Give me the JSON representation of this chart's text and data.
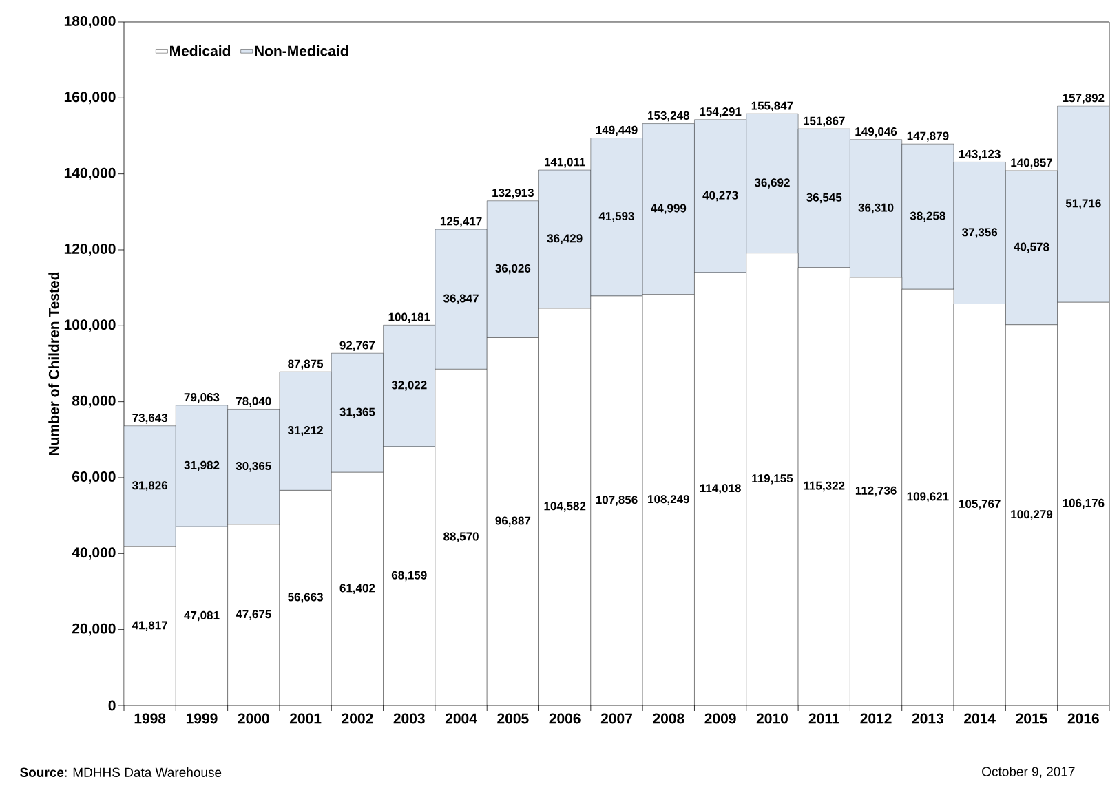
{
  "chart_data": {
    "type": "bar",
    "stacked": true,
    "ylabel": "Number of Children Tested",
    "categories": [
      "1998",
      "1999",
      "2000",
      "2001",
      "2002",
      "2003",
      "2004",
      "2005",
      "2006",
      "2007",
      "2008",
      "2009",
      "2010",
      "2011",
      "2012",
      "2013",
      "2014",
      "2015",
      "2016"
    ],
    "series": [
      {
        "name": "Medicaid",
        "color": "#ffffff",
        "values": [
          41817,
          47081,
          47675,
          56663,
          61402,
          68159,
          88570,
          96887,
          104582,
          107856,
          108249,
          114018,
          119155,
          115322,
          112736,
          109621,
          105767,
          100279,
          106176
        ],
        "value_labels": [
          "41,817",
          "47,081",
          "47,675",
          "56,663",
          "61,402",
          "68,159",
          "88,570",
          "96,887",
          "104,582",
          "107,856",
          "108,249",
          "114,018",
          "119,155",
          "115,322",
          "112,736",
          "109,621",
          "105,767",
          "100,279",
          "106,176"
        ]
      },
      {
        "name": "Non-Medicaid",
        "color": "#dce6f2",
        "values": [
          31826,
          31982,
          30365,
          31212,
          31365,
          32022,
          36847,
          36026,
          36429,
          41593,
          44999,
          40273,
          36692,
          36545,
          36310,
          38258,
          37356,
          40578,
          51716
        ],
        "value_labels": [
          "31,826",
          "31,982",
          "30,365",
          "31,212",
          "31,365",
          "32,022",
          "36,847",
          "36,026",
          "36,429",
          "41,593",
          "44,999",
          "40,273",
          "36,692",
          "36,545",
          "36,310",
          "38,258",
          "37,356",
          "40,578",
          "51,716"
        ]
      }
    ],
    "totals": [
      "73,643",
      "79,063",
      "78,040",
      "87,875",
      "92,767",
      "100,181",
      "125,417",
      "132,913",
      "141,011",
      "149,449",
      "153,248",
      "154,291",
      "155,847",
      "151,867",
      "149,046",
      "147,879",
      "143,123",
      "140,857",
      "157,892"
    ],
    "ylim": [
      0,
      180000
    ],
    "yticks": [
      0,
      {
        "value": 20000,
        "label": "20,000"
      },
      {
        "value": 40000,
        "label": "40,000"
      },
      {
        "value": 60000,
        "label": "60,000"
      },
      {
        "value": 80000,
        "label": "80,000"
      },
      {
        "value": 100000,
        "label": "100,000"
      },
      {
        "value": 120000,
        "label": "120,000"
      },
      {
        "value": 140000,
        "label": "140,000"
      },
      {
        "value": 160000,
        "label": "160,000"
      },
      {
        "value": 180000,
        "label": "180,000"
      }
    ],
    "legend": "top left",
    "annotations": [
      "**Source**: MDHHS Data Warehouse",
      "October 9, 2017"
    ]
  }
}
